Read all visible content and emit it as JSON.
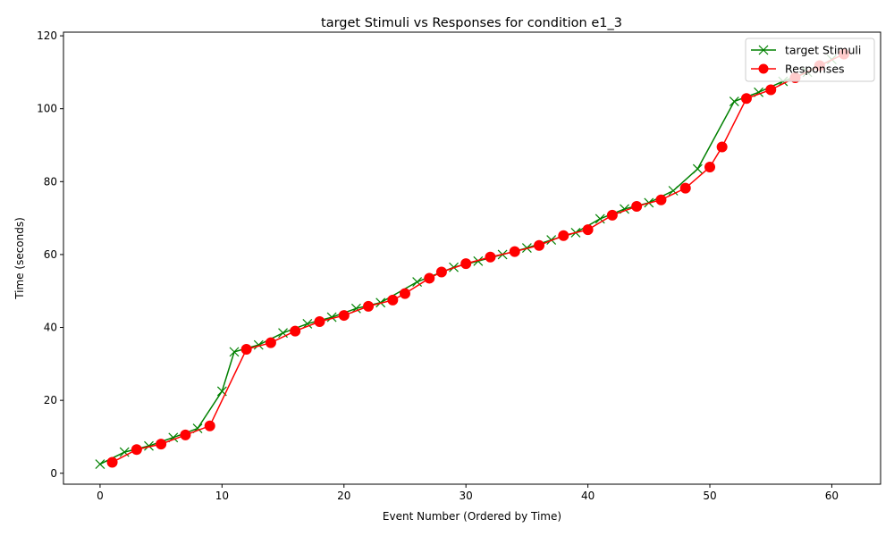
{
  "chart_data": {
    "type": "line",
    "title": "target Stimuli vs Responses for condition e1_3",
    "xlabel": "Event Number (Ordered by Time)",
    "ylabel": "Time (seconds)",
    "xlim": [
      -3,
      64
    ],
    "ylim": [
      -3,
      121
    ],
    "xticks": [
      0,
      10,
      20,
      30,
      40,
      50,
      60
    ],
    "yticks": [
      0,
      20,
      40,
      60,
      80,
      100,
      120
    ],
    "grid": false,
    "legend_position": "top-right",
    "series": [
      {
        "name": "target Stimuli",
        "color": "#008000",
        "marker": "x",
        "points": [
          [
            0,
            2.5
          ],
          [
            2,
            5.8
          ],
          [
            4,
            7.5
          ],
          [
            6,
            9.8
          ],
          [
            8,
            12.3
          ],
          [
            10,
            22.5
          ],
          [
            11,
            33.3
          ],
          [
            13,
            35.2
          ],
          [
            15,
            38.5
          ],
          [
            17,
            41.0
          ],
          [
            19,
            42.8
          ],
          [
            21,
            45.2
          ],
          [
            23,
            46.8
          ],
          [
            26,
            52.5
          ],
          [
            29,
            56.5
          ],
          [
            31,
            58.2
          ],
          [
            33,
            60.0
          ],
          [
            35,
            61.8
          ],
          [
            37,
            64.0
          ],
          [
            39,
            66.0
          ],
          [
            41,
            69.8
          ],
          [
            43,
            72.5
          ],
          [
            45,
            74.2
          ],
          [
            47,
            77.5
          ],
          [
            49,
            83.5
          ],
          [
            52,
            102.0
          ],
          [
            54,
            104.5
          ],
          [
            56,
            107.5
          ],
          [
            58,
            110.0
          ],
          [
            60,
            113.5
          ]
        ]
      },
      {
        "name": "Responses",
        "color": "#ff0000",
        "marker": "o",
        "points": [
          [
            1,
            3.0
          ],
          [
            3,
            6.5
          ],
          [
            5,
            8.0
          ],
          [
            7,
            10.5
          ],
          [
            9,
            13.0
          ],
          [
            12,
            34.0
          ],
          [
            14,
            35.8
          ],
          [
            16,
            39.0
          ],
          [
            18,
            41.6
          ],
          [
            20,
            43.3
          ],
          [
            22,
            45.8
          ],
          [
            24,
            47.5
          ],
          [
            25,
            49.3
          ],
          [
            27,
            53.5
          ],
          [
            28,
            55.2
          ],
          [
            30,
            57.5
          ],
          [
            32,
            59.3
          ],
          [
            34,
            60.8
          ],
          [
            36,
            62.5
          ],
          [
            38,
            65.2
          ],
          [
            40,
            66.8
          ],
          [
            42,
            70.8
          ],
          [
            44,
            73.2
          ],
          [
            46,
            75.0
          ],
          [
            48,
            78.2
          ],
          [
            50,
            84.0
          ],
          [
            51,
            89.5
          ],
          [
            53,
            102.8
          ],
          [
            55,
            105.2
          ],
          [
            57,
            108.5
          ],
          [
            59,
            111.8
          ],
          [
            61,
            115.0
          ]
        ]
      }
    ]
  }
}
